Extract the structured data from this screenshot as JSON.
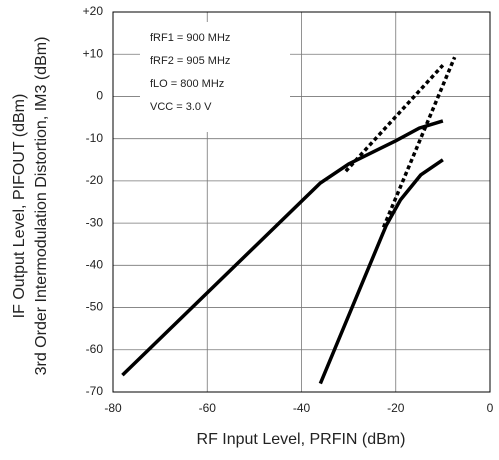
{
  "chart_data": {
    "type": "line",
    "y_label_lines": [
      "IF Output Level, PIFOUT (dBm)",
      "3rd Order Intermodulation Distortion, IM3 (dBm)"
    ],
    "x_label": "RF Input Level, PRFIN (dBm)",
    "annotations": [
      "fRF1 = 900 MHz",
      "fRF2 = 905 MHz",
      "fLO = 800 MHz",
      "VCC = 3.0 V"
    ],
    "xlim": [
      -80,
      0
    ],
    "xticks": [
      -80,
      -60,
      -40,
      -20,
      0
    ],
    "ylim": [
      -70,
      20
    ],
    "yticks": [
      -70,
      -60,
      -50,
      -40,
      -30,
      -20,
      -10,
      0,
      {
        "value": 10,
        "label": "+10"
      },
      {
        "value": 20,
        "label": "+20"
      }
    ],
    "grid": true,
    "series": [
      {
        "color": "#000000",
        "style": "solid",
        "x": [
          -78,
          -36,
          -30,
          -20,
          -15,
          -10
        ],
        "values": [
          -66,
          -20.5,
          -16,
          -10.5,
          -7.5,
          -5.8
        ]
      },
      {
        "color": "#000000",
        "style": "solid",
        "x": [
          -36,
          -22,
          -19,
          -14.7,
          -10
        ],
        "values": [
          -68,
          -30.5,
          -24.5,
          -18.6,
          -15
        ]
      },
      {
        "color": "#000000",
        "style": "dotted",
        "x": [
          -30.6,
          -10
        ],
        "values": [
          -17.7,
          7.4
        ]
      },
      {
        "color": "#000000",
        "style": "dotted",
        "x": [
          -22.6,
          -7.5
        ],
        "values": [
          -31,
          9.3
        ]
      }
    ]
  }
}
